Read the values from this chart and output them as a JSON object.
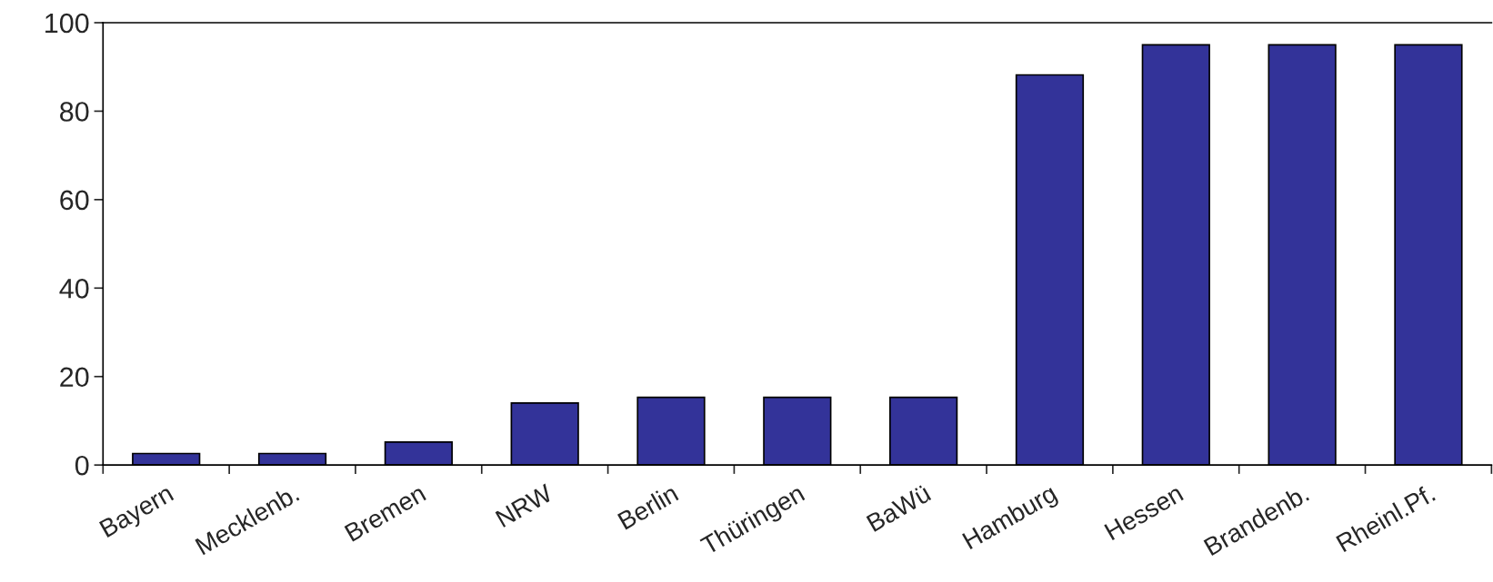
{
  "chart_data": {
    "type": "bar",
    "categories": [
      "Bayern",
      "Mecklenb.",
      "Bremen",
      "NRW",
      "Berlin",
      "Thüringen",
      "BaWü",
      "Hamburg",
      "Hessen",
      "Brandenb.",
      "Rheinl.Pf."
    ],
    "values": [
      2.6,
      2.6,
      5.2,
      14,
      15.3,
      15.3,
      15.3,
      88.2,
      95,
      95,
      95
    ],
    "color": "#333399",
    "ylim": [
      0,
      100
    ],
    "yticks": [
      0,
      20,
      40,
      60,
      80,
      100
    ],
    "grid": false,
    "legend": false
  }
}
